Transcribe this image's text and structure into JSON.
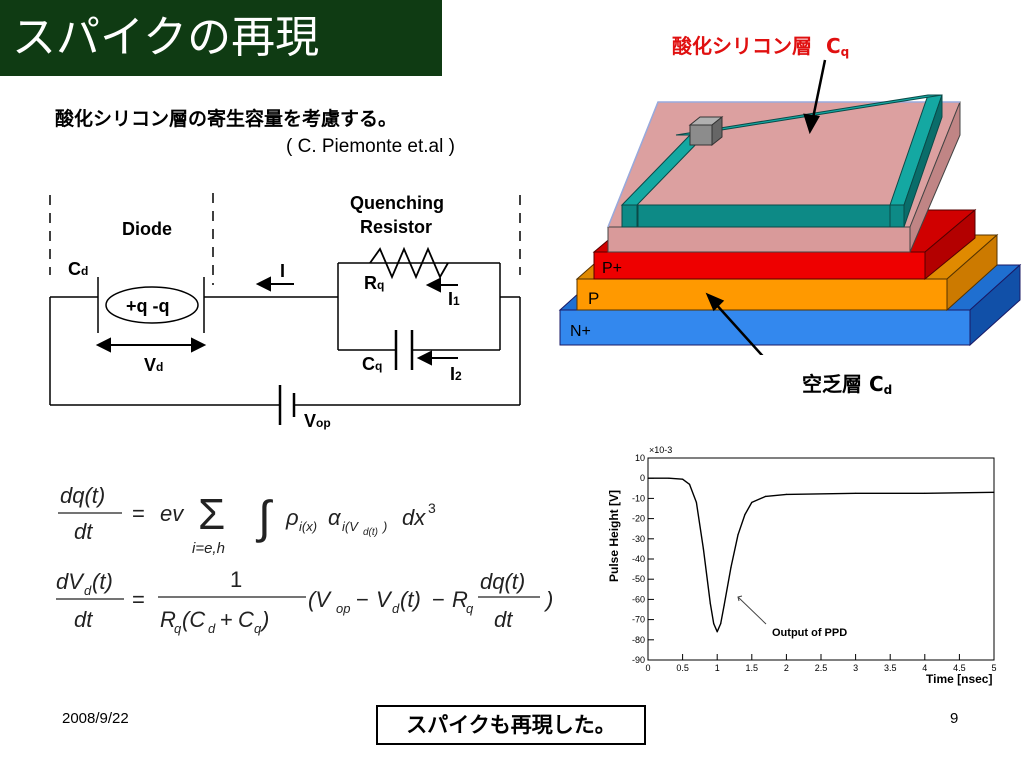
{
  "slide": {
    "title": "スパイクの再現",
    "note": "酸化シリコン層の寄生容量を考慮する。",
    "citation": "( C. Piemonte et.al )",
    "date": "2008/9/22",
    "page": "9",
    "conclusion": "スパイクも再現した。"
  },
  "circuit": {
    "diode_label": "Diode",
    "quench_label_1": "Quenching",
    "quench_label_2": "Resistor",
    "cd_label": "C",
    "cd_sub": "d",
    "charge_label": "+q  -q",
    "vd_label": "V",
    "vd_sub": "d",
    "current_label": "I",
    "rq_label": "R",
    "rq_sub": "q",
    "i1_label": "I",
    "i1_sub": "1",
    "cq_label": "C",
    "cq_sub": "q",
    "i2_label": "I",
    "i2_sub": "2",
    "vop_label": "V",
    "vop_sub": "op"
  },
  "device": {
    "oxide_label": "酸化シリコン層",
    "oxide_sym": "C",
    "oxide_sub": "q",
    "depletion_label": "空乏層",
    "depletion_sym": "C",
    "depletion_sub": "d",
    "layer_pplus": "P+",
    "layer_p": "P",
    "layer_nplus": "N+",
    "colors": {
      "oxide": "#d99a9a",
      "pplus": "#ee0000",
      "p": "#ff9900",
      "nplus": "#3388ee",
      "ring": "#0d8a86"
    }
  },
  "chart_data": {
    "type": "line",
    "xlabel": "Time [nsec]",
    "ylabel": "Pulse Height [V]",
    "y_multiplier": "×10-3",
    "xlim": [
      0,
      5
    ],
    "ylim": [
      -90,
      10
    ],
    "x_ticks": [
      "0",
      "0.5",
      "1",
      "1.5",
      "2",
      "2.5",
      "3",
      "3.5",
      "4",
      "4.5",
      "5"
    ],
    "y_ticks": [
      "10",
      "0",
      "-10",
      "-20",
      "-30",
      "-40",
      "-50",
      "-60",
      "-70",
      "-80",
      "-90"
    ],
    "annotation": "Output of PPD",
    "series": [
      {
        "x": [
          0,
          0.3,
          0.5,
          0.6,
          0.7,
          0.8,
          0.9,
          0.95,
          1.0,
          1.05,
          1.1,
          1.2,
          1.3,
          1.4,
          1.5,
          1.7,
          2.0,
          3.0,
          4.0,
          5.0
        ],
        "y": [
          0,
          0,
          -0.5,
          -3,
          -12,
          -35,
          -62,
          -72,
          -76,
          -72,
          -63,
          -44,
          -28,
          -18,
          -12,
          -9,
          -8,
          -7.5,
          -7.5,
          -7
        ]
      }
    ]
  }
}
